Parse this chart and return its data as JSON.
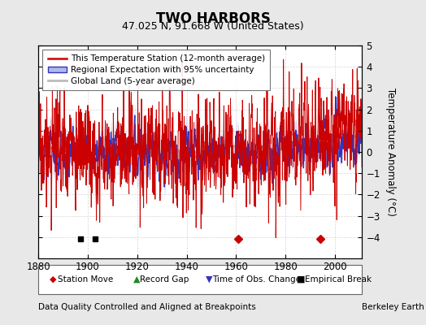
{
  "title": "TWO HARBORS",
  "subtitle": "47.025 N, 91.668 W (United States)",
  "xlabel_note": "Data Quality Controlled and Aligned at Breakpoints",
  "credit": "Berkeley Earth",
  "xlim": [
    1880,
    2011
  ],
  "ylim": [
    -5,
    5
  ],
  "yticks": [
    -4,
    -3,
    -2,
    -1,
    0,
    1,
    2,
    3,
    4,
    5
  ],
  "xticks": [
    1880,
    1900,
    1920,
    1940,
    1960,
    1980,
    2000
  ],
  "ylabel": "Temperature Anomaly (°C)",
  "background_color": "#e8e8e8",
  "plot_bg_color": "#ffffff",
  "red_color": "#cc0000",
  "blue_color": "#3333bb",
  "blue_fill_color": "#b0b8e8",
  "gray_color": "#bbbbbb",
  "legend_items": [
    "This Temperature Station (12-month average)",
    "Regional Expectation with 95% uncertainty",
    "Global Land (5-year average)"
  ],
  "marker_events": {
    "station_move_years": [
      1961,
      1994
    ],
    "empirical_break_years": [
      1897,
      1903
    ]
  },
  "seed": 17
}
